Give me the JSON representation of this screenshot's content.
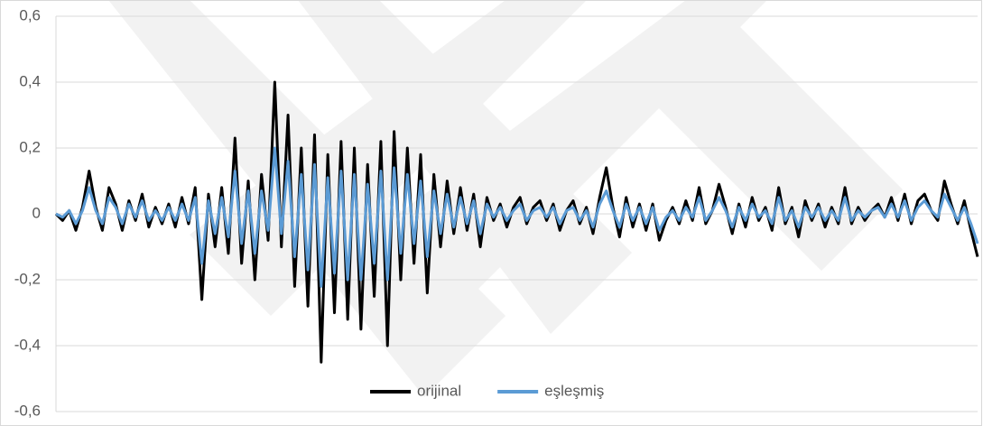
{
  "chart_data": {
    "type": "line",
    "ylim": [
      -0.6,
      0.6
    ],
    "yticks": [
      {
        "value": -0.6,
        "label": "-0,6"
      },
      {
        "value": -0.4,
        "label": "-0,4"
      },
      {
        "value": -0.2,
        "label": "-0,2"
      },
      0,
      {
        "value": 0.2,
        "label": "0,2"
      },
      {
        "value": 0.4,
        "label": "0,4"
      },
      {
        "value": 0.6,
        "label": "0,6"
      }
    ],
    "grid": true,
    "legend": "bottom",
    "series": [
      {
        "name": "orijinal",
        "color": "#000000",
        "values": [
          0,
          -0.02,
          0.01,
          -0.05,
          0.02,
          0.13,
          0.02,
          -0.05,
          0.08,
          0.03,
          -0.05,
          0.04,
          -0.02,
          0.06,
          -0.04,
          0.02,
          -0.03,
          0.03,
          -0.04,
          0.05,
          -0.03,
          0.08,
          -0.26,
          0.06,
          -0.1,
          0.08,
          -0.12,
          0.23,
          -0.15,
          0.1,
          -0.2,
          0.12,
          -0.08,
          0.4,
          -0.1,
          0.3,
          -0.22,
          0.2,
          -0.28,
          0.24,
          -0.45,
          0.18,
          -0.3,
          0.22,
          -0.32,
          0.2,
          -0.35,
          0.15,
          -0.25,
          0.22,
          -0.4,
          0.25,
          -0.2,
          0.2,
          -0.15,
          0.18,
          -0.24,
          0.12,
          -0.1,
          0.1,
          -0.06,
          0.08,
          -0.05,
          0.06,
          -0.1,
          0.05,
          -0.02,
          0.03,
          -0.04,
          0.02,
          0.05,
          -0.03,
          0.02,
          0.04,
          -0.02,
          0.03,
          -0.05,
          0.01,
          0.04,
          -0.03,
          0.02,
          -0.06,
          0.05,
          0.14,
          0.02,
          -0.07,
          0.05,
          -0.04,
          0.03,
          -0.05,
          0.03,
          -0.08,
          -0.02,
          0.02,
          -0.03,
          0.04,
          -0.02,
          0.08,
          -0.03,
          0.01,
          0.09,
          0.02,
          -0.06,
          0.03,
          -0.04,
          0.05,
          -0.02,
          0.02,
          -0.05,
          0.08,
          -0.03,
          0.02,
          -0.07,
          0.04,
          -0.02,
          0.03,
          -0.04,
          0.02,
          -0.03,
          0.08,
          -0.03,
          0.02,
          -0.02,
          0.01,
          0.03,
          -0.01,
          0.05,
          -0.02,
          0.06,
          -0.03,
          0.04,
          0.06,
          0.01,
          -0.02,
          0.1,
          0.03,
          -0.03,
          0.04,
          -0.05,
          -0.13
        ]
      },
      {
        "name": "eşleşmiş",
        "color": "#5b9bd5",
        "values": [
          0,
          -0.01,
          0.01,
          -0.03,
          0.01,
          0.08,
          0.01,
          -0.03,
          0.05,
          0.02,
          -0.03,
          0.03,
          -0.01,
          0.04,
          -0.02,
          0.01,
          -0.02,
          0.02,
          -0.02,
          0.03,
          -0.02,
          0.05,
          -0.15,
          0.04,
          -0.06,
          0.05,
          -0.07,
          0.13,
          -0.09,
          0.07,
          -0.12,
          0.07,
          -0.05,
          0.2,
          -0.06,
          0.16,
          -0.13,
          0.12,
          -0.17,
          0.15,
          -0.22,
          0.11,
          -0.18,
          0.13,
          -0.2,
          0.12,
          -0.2,
          0.09,
          -0.15,
          0.13,
          -0.2,
          0.14,
          -0.12,
          0.12,
          -0.09,
          0.1,
          -0.13,
          0.07,
          -0.06,
          0.06,
          -0.04,
          0.05,
          -0.03,
          0.04,
          -0.06,
          0.03,
          -0.01,
          0.02,
          -0.02,
          0.01,
          0.03,
          -0.02,
          0.01,
          0.02,
          -0.01,
          0.02,
          -0.03,
          0.01,
          0.02,
          -0.02,
          0.01,
          -0.04,
          0.03,
          0.07,
          0.01,
          -0.04,
          0.03,
          -0.02,
          0.02,
          -0.03,
          0.02,
          -0.05,
          -0.01,
          0.01,
          -0.02,
          0.02,
          -0.01,
          0.05,
          -0.02,
          0.01,
          0.05,
          0.01,
          -0.04,
          0.02,
          -0.02,
          0.03,
          -0.01,
          0.01,
          -0.03,
          0.05,
          -0.02,
          0.01,
          -0.04,
          0.02,
          -0.01,
          0.02,
          -0.02,
          0.01,
          -0.02,
          0.05,
          -0.02,
          0.01,
          -0.01,
          0.01,
          0.02,
          -0.01,
          0.03,
          -0.01,
          0.04,
          -0.02,
          0.02,
          0.04,
          0.01,
          -0.01,
          0.06,
          0.02,
          -0.02,
          0.02,
          -0.03,
          -0.09
        ]
      }
    ]
  }
}
